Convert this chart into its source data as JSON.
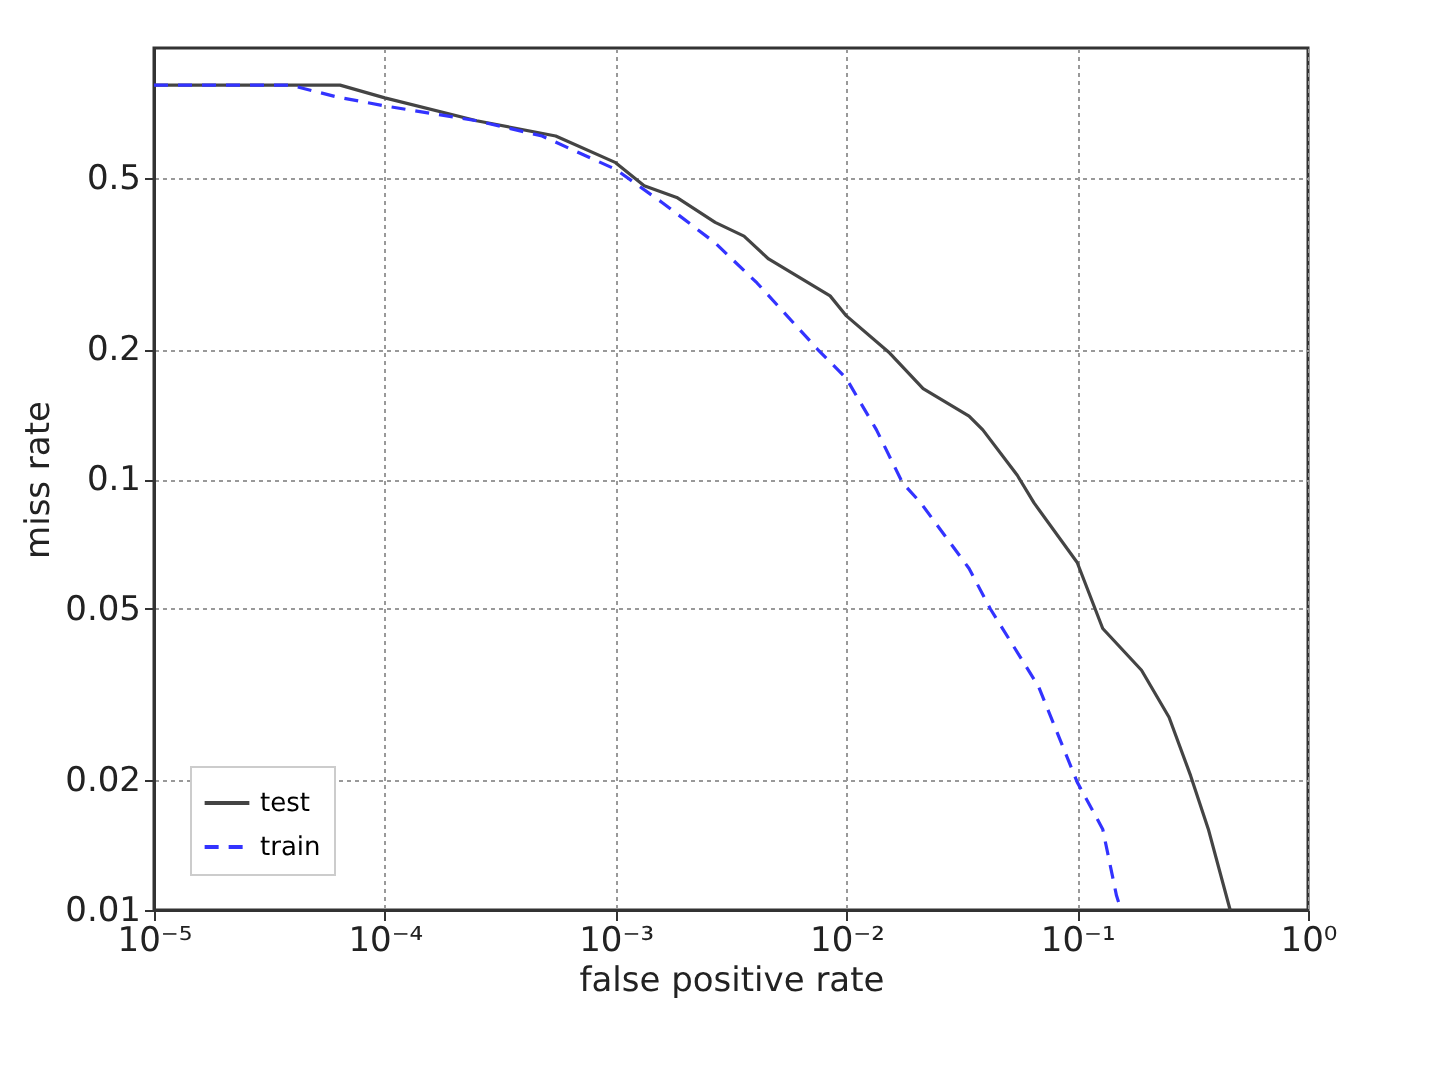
{
  "chart_data": {
    "type": "line",
    "xlabel": "false positive rate",
    "ylabel": "miss rate",
    "log": "xy",
    "grid": true,
    "legend": "bottom left",
    "xlim": [
      1e-05,
      1
    ],
    "ylim": [
      0.01,
      1
    ],
    "xticks": [
      {
        "value": 1e-05,
        "label": "10⁻⁵"
      },
      {
        "value": 0.0001,
        "label": "10⁻⁴"
      },
      {
        "value": 0.001,
        "label": "10⁻³"
      },
      {
        "value": 0.01,
        "label": "10⁻²"
      },
      {
        "value": 0.1,
        "label": "10⁻¹"
      },
      {
        "value": 1,
        "label": "10⁰"
      }
    ],
    "yticks": [
      0.01,
      0.02,
      0.05,
      0.1,
      0.2,
      0.5
    ],
    "series": [
      {
        "name": "test",
        "color": "#444444",
        "line_style": "solid",
        "x": [
          1e-05,
          6.4e-05,
          0.0001,
          0.00025,
          0.00055,
          0.001,
          0.00133,
          0.00184,
          0.0027,
          0.0036,
          0.0046,
          0.0085,
          0.01,
          0.0154,
          0.0215,
          0.034,
          0.039,
          0.055,
          0.065,
          0.1,
          0.129,
          0.19,
          0.25,
          0.31,
          0.37,
          0.46
        ],
        "values": [
          0.82,
          0.82,
          0.766,
          0.678,
          0.625,
          0.542,
          0.479,
          0.45,
          0.394,
          0.366,
          0.324,
          0.266,
          0.239,
          0.196,
          0.162,
          0.14,
          0.13,
          0.102,
          0.088,
          0.064,
          0.045,
          0.036,
          0.028,
          0.0205,
          0.0154,
          0.01
        ]
      },
      {
        "name": "train",
        "color": "#3333ff",
        "line_style": "dashed",
        "x": [
          1e-05,
          3.9e-05,
          6.2e-05,
          0.0001,
          0.00025,
          0.00048,
          0.001,
          0.0016,
          0.0027,
          0.0041,
          0.0075,
          0.01,
          0.0135,
          0.0175,
          0.021,
          0.034,
          0.042,
          0.068,
          0.1,
          0.129,
          0.148,
          0.155
        ],
        "values": [
          0.82,
          0.82,
          0.77,
          0.734,
          0.678,
          0.625,
          0.523,
          0.437,
          0.353,
          0.285,
          0.2,
          0.171,
          0.13,
          0.098,
          0.088,
          0.062,
          0.05,
          0.033,
          0.0198,
          0.0154,
          0.0108,
          0.01
        ]
      }
    ]
  }
}
